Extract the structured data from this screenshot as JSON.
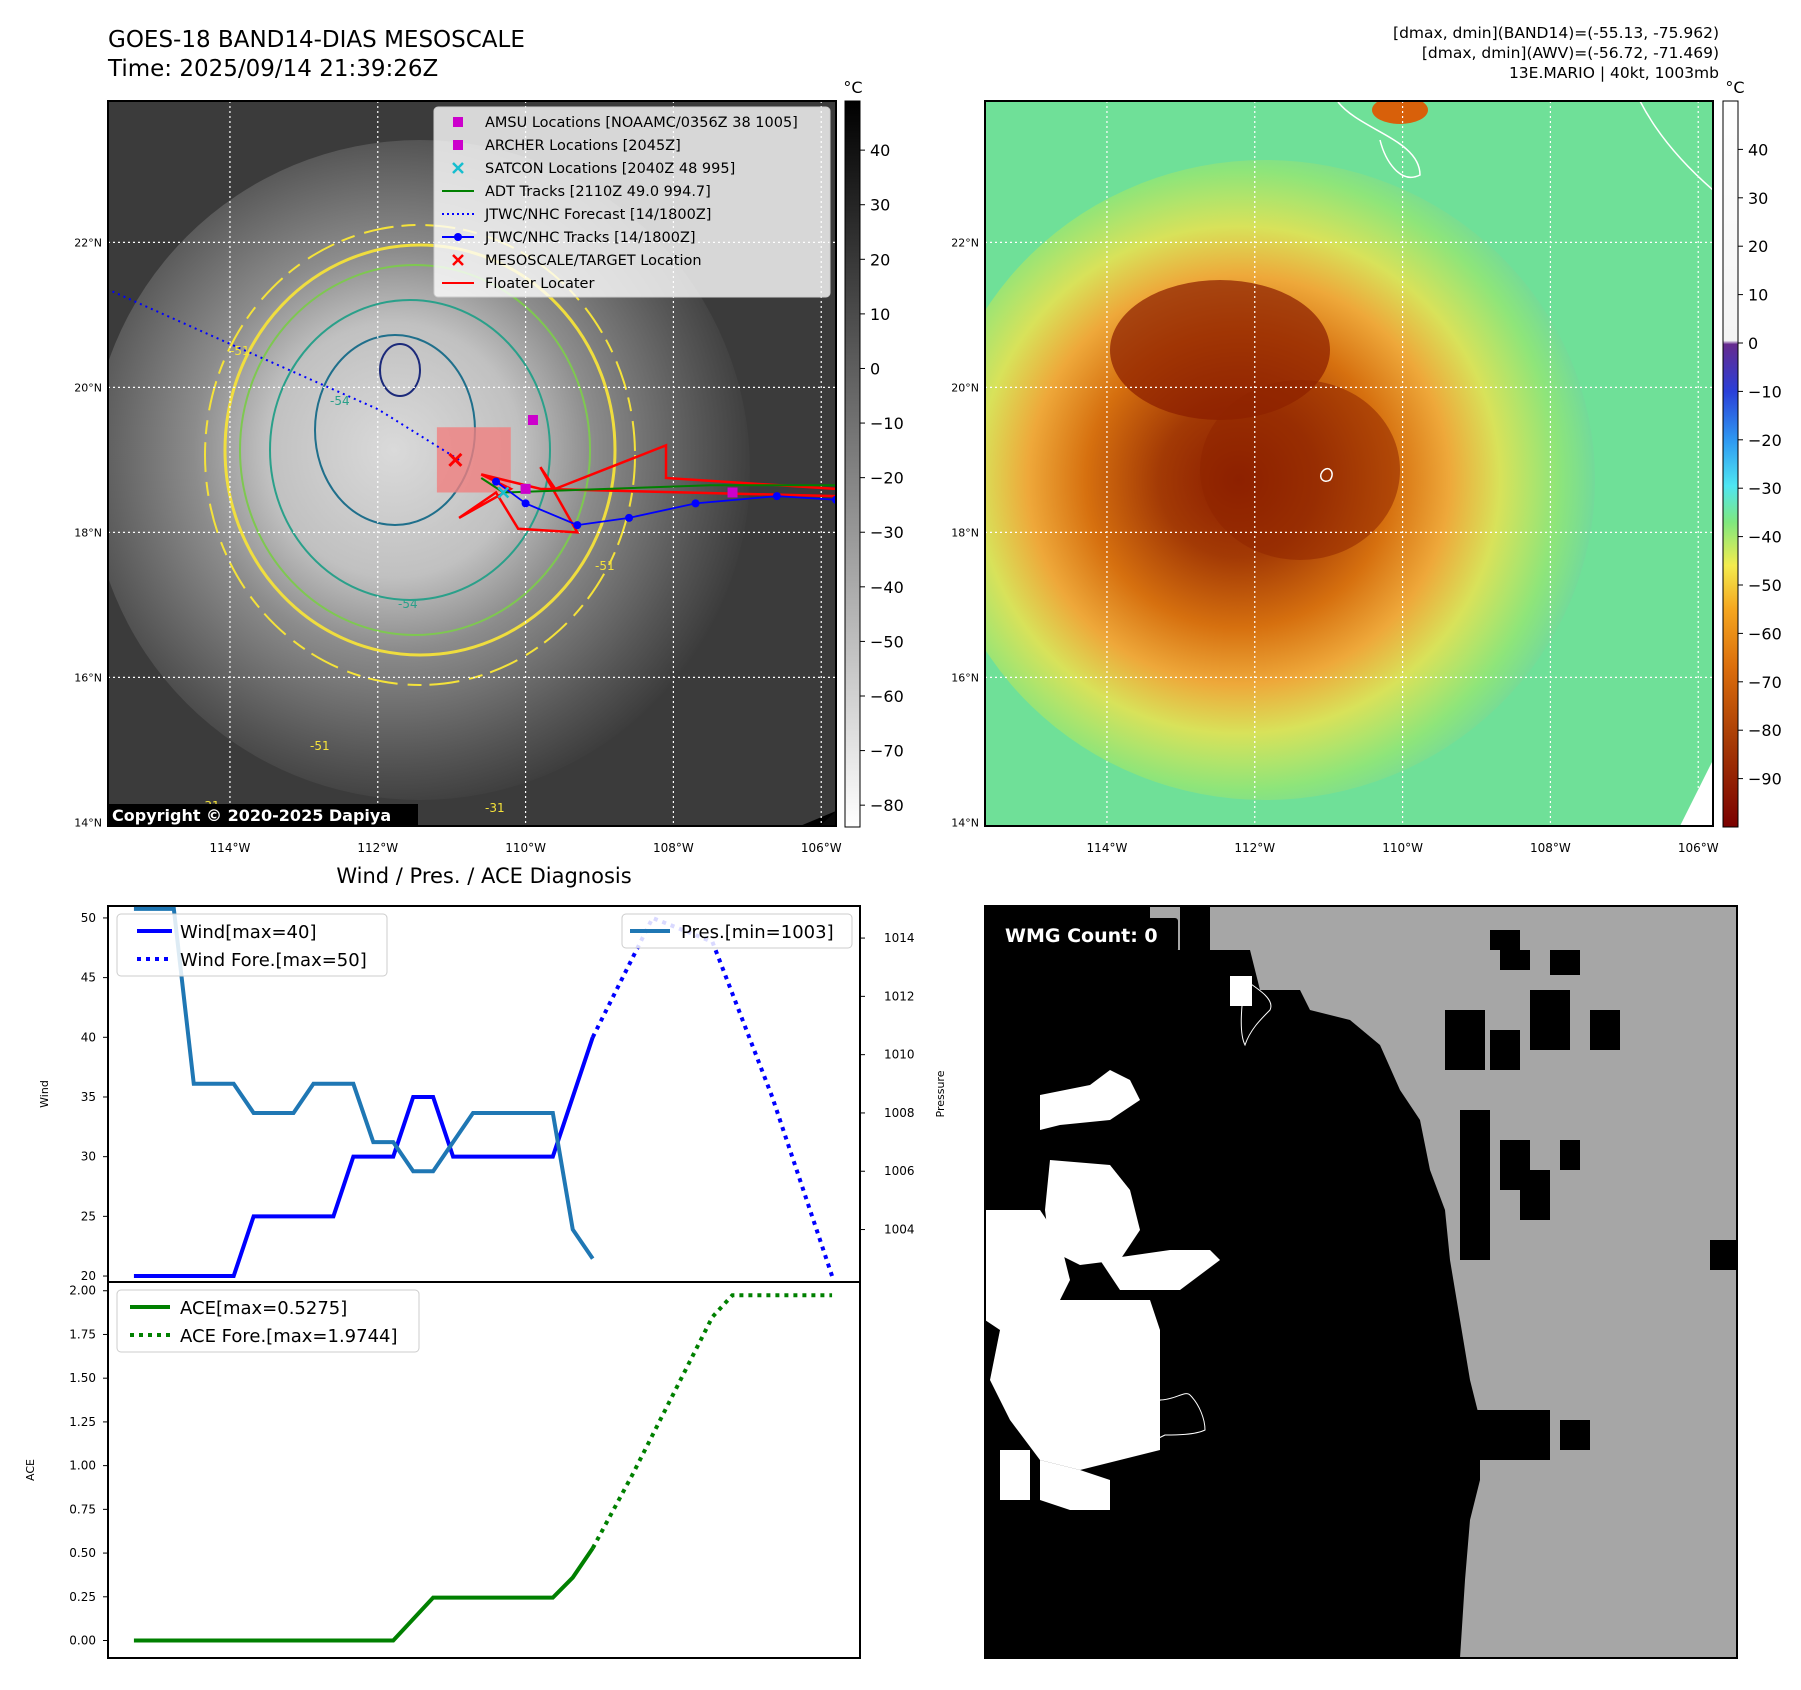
{
  "header": {
    "title": "GOES-18 BAND14-DIAS MESOSCALE",
    "time": "Time: 2025/09/14 21:39:26Z",
    "stats_line1": "[dmax, dmin](BAND14)=(-55.13, -75.962)",
    "stats_line2": "[dmax, dmin](AWV)=(-56.72, -71.469)",
    "stats_line3": "13E.MARIO | 40kt, 1003mb"
  },
  "copyright": "Copyright © 2020-2025 Dapiya",
  "map": {
    "lat_labels": [
      "22°N",
      "20°N",
      "18°N",
      "16°N",
      "14°N"
    ],
    "lat_values": [
      22,
      20,
      18,
      16,
      14
    ],
    "lon_labels": [
      "114°W",
      "112°W",
      "110°W",
      "108°W",
      "106°W"
    ],
    "lon_values": [
      -114,
      -112,
      -110,
      -108,
      -106
    ],
    "lon_range": [
      -115.65,
      -105.8
    ],
    "lat_range": [
      13.95,
      23.95
    ],
    "contour_labels": [
      "-54",
      "-51",
      "-51",
      "-54",
      "-51",
      "-31",
      "-31"
    ],
    "legend": [
      {
        "label": "AMSU Locations [NOAAMC/0356Z 38 1005]",
        "marker": "square",
        "color": "#cc00cc"
      },
      {
        "label": "ARCHER Locations [2045Z]",
        "marker": "square",
        "color": "#cc00cc"
      },
      {
        "label": "SATCON Locations [2040Z 48 995]",
        "marker": "x",
        "color": "#17becf"
      },
      {
        "label": "ADT Tracks [2110Z 49.0 994.7]",
        "marker": "line",
        "color": "#008000"
      },
      {
        "label": "JTWC/NHC Forecast [14/1800Z]",
        "marker": "dotted",
        "color": "#0000ff"
      },
      {
        "label": "JTWC/NHC Tracks [14/1800Z]",
        "marker": "dotline",
        "color": "#0000ff"
      },
      {
        "label": "MESOSCALE/TARGET Location",
        "marker": "x",
        "color": "#ff0000"
      },
      {
        "label": "Floater Locater",
        "marker": "line",
        "color": "#ff0000"
      }
    ],
    "jtwc_track": [
      [
        -105.8,
        18.45
      ],
      [
        -106.6,
        18.5
      ],
      [
        -107.7,
        18.4
      ],
      [
        -108.6,
        18.2
      ],
      [
        -109.3,
        18.1
      ],
      [
        -110.0,
        18.4
      ],
      [
        -110.4,
        18.7
      ]
    ],
    "jtwc_forecast": [
      [
        -110.9,
        19.0
      ],
      [
        -112.0,
        19.7
      ],
      [
        -114.0,
        20.6
      ],
      [
        -115.65,
        21.35
      ]
    ],
    "adt_track": [
      [
        -105.8,
        18.65
      ],
      [
        -107.5,
        18.65
      ],
      [
        -110.3,
        18.55
      ],
      [
        -110.6,
        18.75
      ]
    ],
    "amsu_point": [
      -109.9,
      19.55
    ],
    "archer_points": [
      [
        -110.0,
        18.6
      ],
      [
        -107.2,
        18.55
      ]
    ],
    "satcon_point": [
      -110.3,
      18.55
    ],
    "target_point": [
      -110.95,
      19.0
    ],
    "target_box": [
      [
        -111.2,
        19.45
      ],
      [
        -110.2,
        18.55
      ]
    ]
  },
  "colorbar_left": {
    "unit": "°C",
    "ticks": [
      "40",
      "30",
      "20",
      "10",
      "0",
      "−10",
      "−20",
      "−30",
      "−40",
      "−50",
      "−60",
      "−70",
      "−80"
    ],
    "tick_values": [
      40,
      30,
      20,
      10,
      0,
      -10,
      -20,
      -30,
      -40,
      -50,
      -60,
      -70,
      -80
    ],
    "range": [
      -84,
      49
    ]
  },
  "colorbar_right": {
    "unit": "°C",
    "ticks": [
      "40",
      "30",
      "20",
      "10",
      "0",
      "−10",
      "−20",
      "−30",
      "−40",
      "−50",
      "−60",
      "−70",
      "−80",
      "−90"
    ],
    "tick_values": [
      40,
      30,
      20,
      10,
      0,
      -10,
      -20,
      -30,
      -40,
      -50,
      -60,
      -70,
      -80,
      -90
    ],
    "range": [
      -100,
      50
    ]
  },
  "wmg": {
    "label": "WMG Count: 0"
  },
  "chart_data": [
    {
      "type": "line",
      "title": "Wind / Pres. / ACE Diagnosis",
      "ylabel": "Wind",
      "y2label": "Pressure",
      "ylim": [
        19.5,
        51
      ],
      "y2lim": [
        1002.2,
        1015.1
      ],
      "yticks": [
        "50",
        "45",
        "40",
        "35",
        "30",
        "25",
        "20"
      ],
      "ytick_values": [
        50,
        45,
        40,
        35,
        30,
        25,
        20
      ],
      "y2ticks": [
        "1014",
        "1012",
        "1010",
        "1008",
        "1006",
        "1004"
      ],
      "y2tick_values": [
        1014,
        1012,
        1010,
        1008,
        1006,
        1004
      ],
      "x": [
        0,
        1,
        2,
        3,
        4,
        5,
        6,
        7,
        8,
        9,
        10,
        11,
        12,
        13,
        14,
        15,
        16,
        17,
        18,
        19,
        20,
        21,
        22,
        23,
        24,
        25,
        26,
        27,
        28,
        29,
        30,
        31,
        32,
        33,
        34,
        35,
        36
      ],
      "series": [
        {
          "name": "Wind[max=40]",
          "axis": "left",
          "style": "solid",
          "color": "#0000ff",
          "x": [
            0,
            5,
            6,
            10,
            11,
            12,
            13,
            14,
            15,
            16,
            21,
            23
          ],
          "values": [
            20,
            20,
            25,
            25,
            30,
            30,
            30,
            35,
            35,
            30,
            30,
            40
          ]
        },
        {
          "name": "Wind Fore.[max=50]",
          "axis": "left",
          "style": "dotted",
          "color": "#0000ff",
          "x": [
            23,
            26,
            29,
            32,
            35
          ],
          "values": [
            40,
            50,
            48,
            35,
            20
          ]
        },
        {
          "name": "Pres.[min=1003]",
          "axis": "right",
          "style": "solid",
          "color": "#1f77b4",
          "x": [
            0,
            2,
            3,
            5,
            6,
            8,
            9,
            11,
            12,
            13,
            14,
            15,
            16,
            17,
            20,
            21,
            22,
            23
          ],
          "values": [
            1015,
            1015,
            1009,
            1009,
            1008,
            1008,
            1009,
            1009,
            1007,
            1007,
            1006,
            1006,
            1007,
            1008,
            1008,
            1008,
            1004,
            1003
          ]
        }
      ]
    },
    {
      "type": "line",
      "ylabel": "ACE",
      "ylim": [
        -0.1,
        2.05
      ],
      "yticks": [
        "2.00",
        "1.75",
        "1.50",
        "1.25",
        "1.00",
        "0.75",
        "0.50",
        "0.25",
        "0.00"
      ],
      "ytick_values": [
        2.0,
        1.75,
        1.5,
        1.25,
        1.0,
        0.75,
        0.5,
        0.25,
        0.0
      ],
      "series": [
        {
          "name": "ACE[max=0.5275]",
          "style": "solid",
          "color": "#008000",
          "x": [
            0,
            13,
            15,
            21,
            22,
            23
          ],
          "values": [
            0,
            0,
            0.245,
            0.245,
            0.36,
            0.5275
          ]
        },
        {
          "name": "ACE Fore.[max=1.9744]",
          "style": "dotted",
          "color": "#008000",
          "x": [
            23,
            25,
            27,
            29,
            30,
            31,
            35
          ],
          "values": [
            0.5275,
            0.95,
            1.4,
            1.85,
            1.9744,
            1.9744,
            1.9744
          ]
        }
      ]
    }
  ]
}
